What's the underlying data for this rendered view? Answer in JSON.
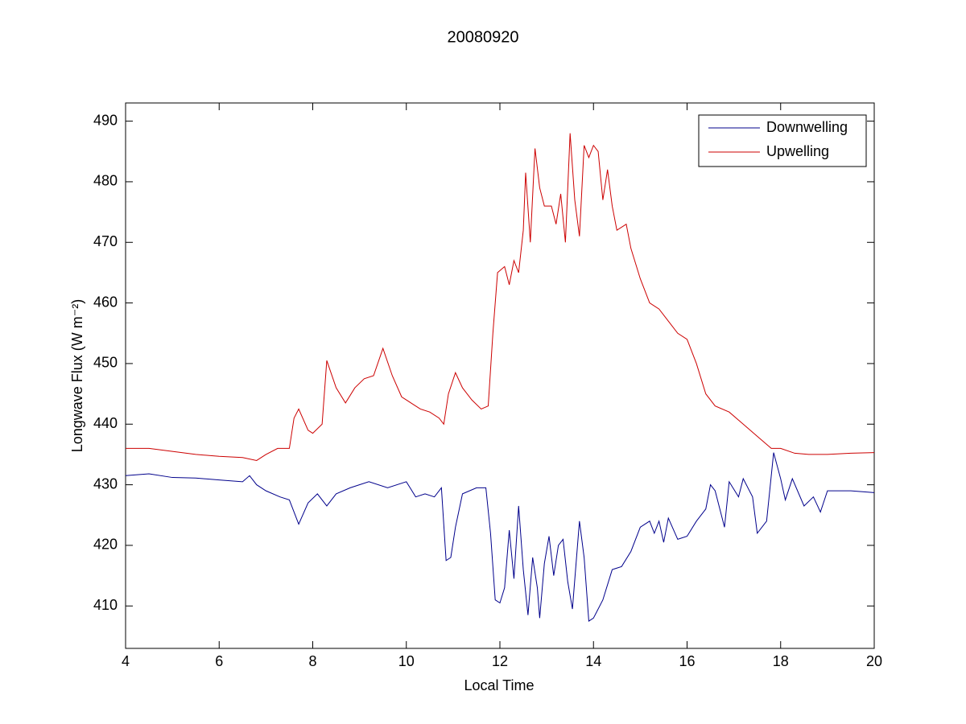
{
  "chart_data": {
    "type": "line",
    "title": "20080920",
    "xlabel": "Local Time",
    "ylabel": "Longwave Flux (W m⁻²)",
    "xlim": [
      4,
      20
    ],
    "ylim": [
      403,
      493
    ],
    "xticks": [
      4,
      6,
      8,
      10,
      12,
      14,
      16,
      18,
      20
    ],
    "yticks": [
      410,
      420,
      430,
      440,
      450,
      460,
      470,
      480,
      490
    ],
    "legend": "northeast",
    "grid": false,
    "series": [
      {
        "name": "Downwelling",
        "color": "#00008b",
        "x": [
          4,
          4.5,
          5,
          5.5,
          6,
          6.5,
          6.65,
          6.8,
          7.0,
          7.3,
          7.5,
          7.7,
          7.9,
          8.1,
          8.3,
          8.5,
          8.8,
          9.2,
          9.6,
          10,
          10.2,
          10.4,
          10.6,
          10.75,
          10.85,
          10.95,
          11.05,
          11.2,
          11.5,
          11.7,
          11.8,
          11.9,
          12.0,
          12.1,
          12.2,
          12.3,
          12.4,
          12.5,
          12.6,
          12.7,
          12.8,
          12.85,
          12.95,
          13.05,
          13.15,
          13.25,
          13.35,
          13.45,
          13.55,
          13.7,
          13.8,
          13.9,
          14.0,
          14.2,
          14.4,
          14.6,
          14.8,
          15.0,
          15.2,
          15.3,
          15.4,
          15.5,
          15.6,
          15.8,
          16.0,
          16.2,
          16.4,
          16.5,
          16.6,
          16.8,
          16.9,
          17.1,
          17.2,
          17.4,
          17.5,
          17.7,
          17.85,
          18.0,
          18.1,
          18.25,
          18.5,
          18.7,
          18.85,
          19.0,
          19.5,
          20
        ],
        "values": [
          431.5,
          431.8,
          431.2,
          431.1,
          430.8,
          430.5,
          431.5,
          430,
          429,
          428,
          427.5,
          423.5,
          427,
          428.5,
          426.5,
          428.5,
          429.5,
          430.5,
          429.5,
          430.5,
          428,
          428.5,
          428,
          429.5,
          417.5,
          418,
          423,
          428.5,
          429.5,
          429.5,
          422,
          411,
          410.5,
          413,
          422.5,
          414.5,
          426.5,
          416,
          408.5,
          418,
          413,
          408,
          417,
          421.5,
          415,
          420,
          421,
          414,
          409.5,
          424,
          418,
          407.5,
          408,
          411,
          416,
          416.5,
          419,
          423,
          424,
          422,
          424,
          420.5,
          424.5,
          421,
          421.5,
          424,
          426,
          430,
          429,
          423,
          430.5,
          428,
          431,
          428,
          422,
          424,
          435.3,
          431,
          427.5,
          431,
          426.5,
          428,
          425.5,
          429,
          429,
          428.7
        ]
      },
      {
        "name": "Upwelling",
        "color": "#cc0000",
        "x": [
          4,
          4.5,
          5,
          5.5,
          6,
          6.5,
          6.8,
          7,
          7.25,
          7.5,
          7.6,
          7.7,
          7.9,
          8,
          8.2,
          8.3,
          8.5,
          8.7,
          8.9,
          9.1,
          9.3,
          9.5,
          9.7,
          9.9,
          10.1,
          10.3,
          10.5,
          10.7,
          10.8,
          10.9,
          11.05,
          11.2,
          11.4,
          11.6,
          11.75,
          11.85,
          11.95,
          12.1,
          12.2,
          12.3,
          12.4,
          12.5,
          12.55,
          12.65,
          12.75,
          12.85,
          12.95,
          13.1,
          13.2,
          13.3,
          13.4,
          13.5,
          13.6,
          13.7,
          13.8,
          13.9,
          14.0,
          14.1,
          14.2,
          14.3,
          14.4,
          14.5,
          14.7,
          14.8,
          15.0,
          15.2,
          15.4,
          15.6,
          15.8,
          16.0,
          16.2,
          16.4,
          16.6,
          16.9,
          17.2,
          17.5,
          17.8,
          18.0,
          18.3,
          18.6,
          19.0,
          19.5,
          20
        ],
        "values": [
          436,
          436,
          435.5,
          435,
          434.7,
          434.5,
          434,
          435,
          436,
          436,
          441,
          442.5,
          439,
          438.5,
          440,
          450.5,
          446,
          443.5,
          446,
          447.5,
          448,
          452.5,
          448,
          444.5,
          443.5,
          442.5,
          442,
          441,
          440,
          445,
          448.5,
          446,
          444,
          442.5,
          443,
          455,
          465,
          466,
          463,
          467,
          465,
          472,
          481.5,
          470,
          485.5,
          479,
          476,
          476,
          473,
          478,
          470,
          488,
          477,
          471,
          486,
          484,
          486,
          485,
          477,
          482,
          476,
          472,
          473,
          469,
          464,
          460,
          459,
          457,
          455,
          454,
          450,
          445,
          443,
          442,
          440,
          438,
          436,
          436,
          435.2,
          435,
          435,
          435.2,
          435.3
        ]
      }
    ]
  }
}
